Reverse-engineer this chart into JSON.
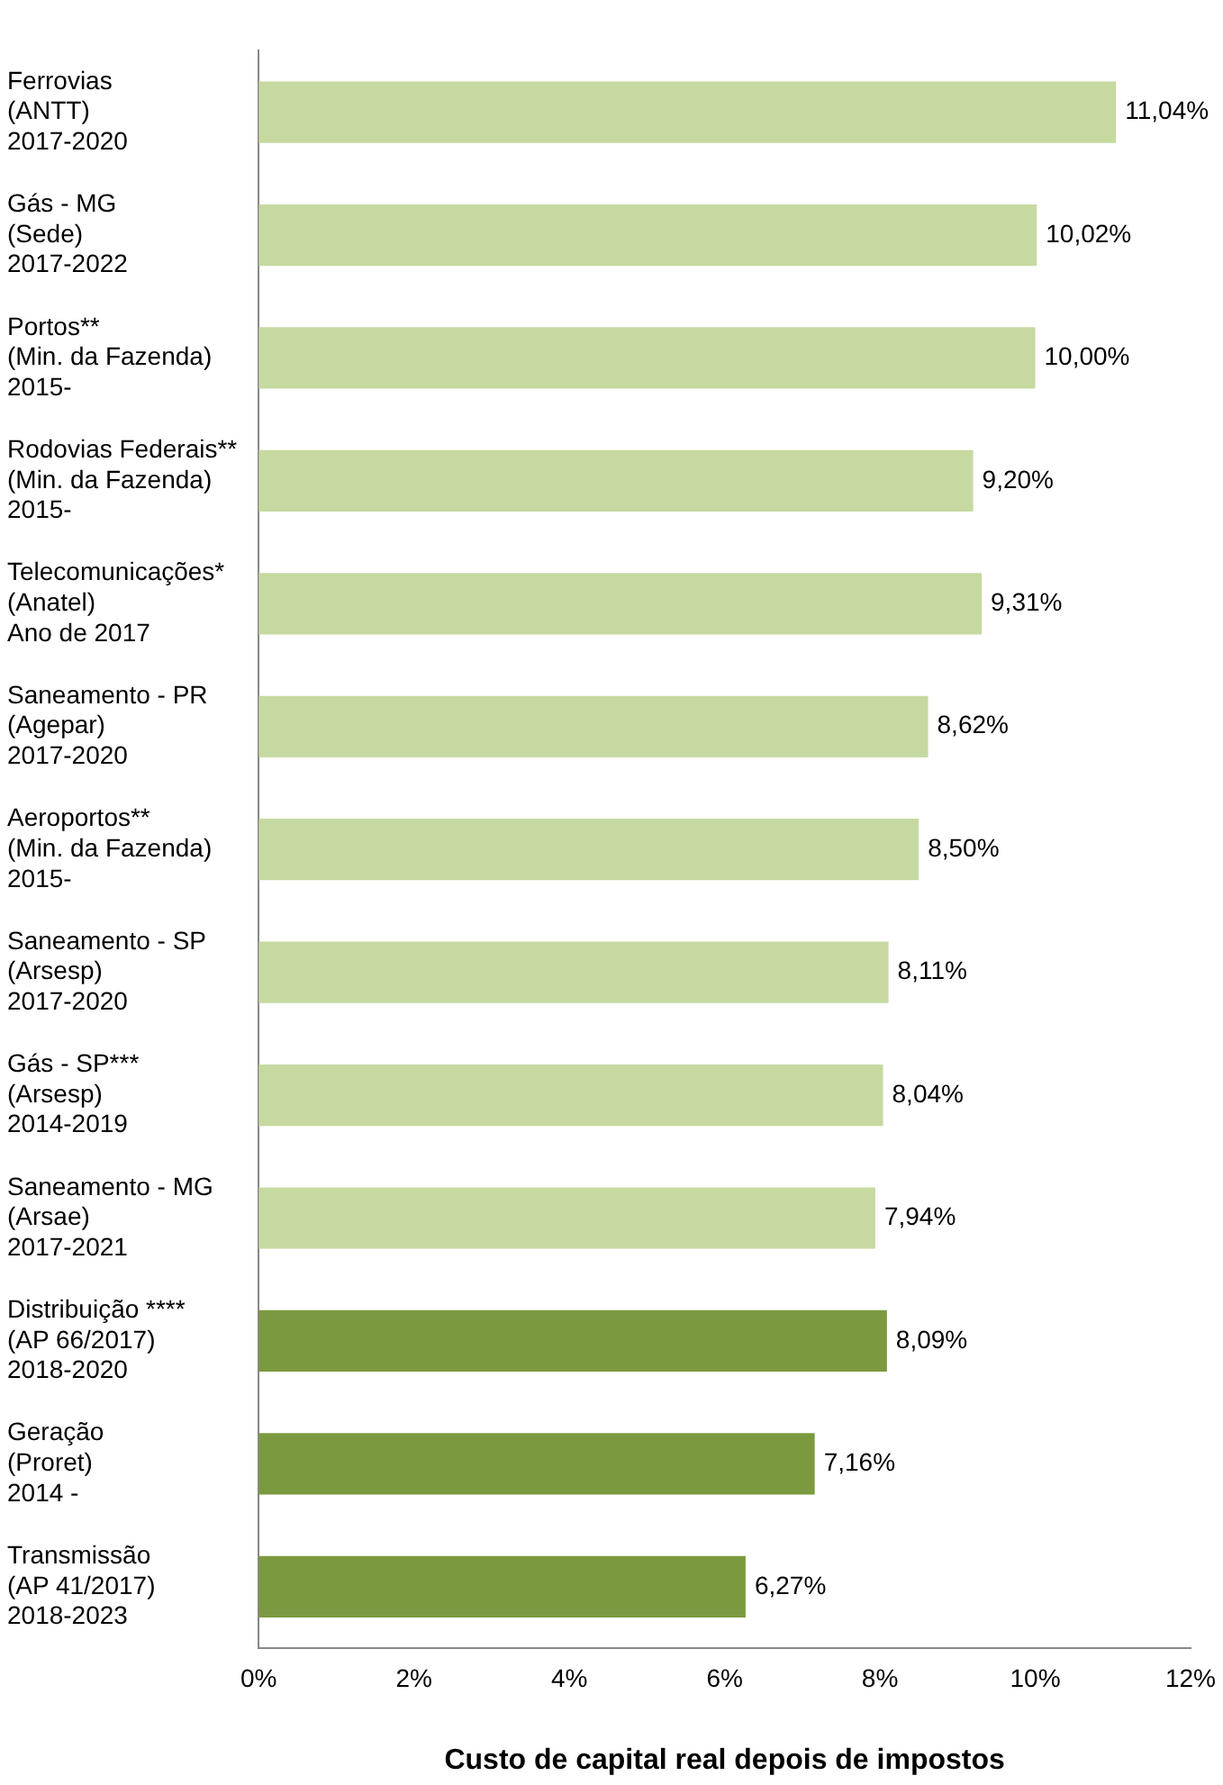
{
  "chart_data": {
    "type": "bar",
    "orientation": "horizontal",
    "xlabel": "Custo de capital real depois de impostos",
    "categories": [
      "Ferrovias\n(ANTT)\n2017-2020",
      "Gás - MG\n(Sede)\n2017-2022",
      "Portos**\n(Min. da Fazenda)\n2015-",
      "Rodovias Federais**\n(Min. da Fazenda)\n2015-",
      "Telecomunicações*\n(Anatel)\nAno de 2017",
      "Saneamento - PR\n(Agepar)\n2017-2020",
      "Aeroportos**\n(Min. da Fazenda)\n2015-",
      "Saneamento - SP\n(Arsesp)\n2017-2020",
      "Gás - SP***\n(Arsesp)\n2014-2019",
      "Saneamento - MG\n(Arsae)\n2017-2021",
      "Distribuição ****\n(AP 66/2017)\n2018-2020",
      "Geração\n(Proret)\n2014 -",
      "Transmissão\n(AP 41/2017)\n2018-2023"
    ],
    "values": [
      11.04,
      10.02,
      10.0,
      9.2,
      9.31,
      8.62,
      8.5,
      8.11,
      8.04,
      7.94,
      8.09,
      7.16,
      6.27
    ],
    "value_labels": [
      "11,04%",
      "10,02%",
      "10,00%",
      "9,20%",
      "9,31%",
      "8,62%",
      "8,50%",
      "8,11%",
      "8,04%",
      "7,94%",
      "8,09%",
      "7,16%",
      "6,27%"
    ],
    "colors": [
      "#c6d9a0",
      "#c6d9a0",
      "#c6d9a0",
      "#c6d9a0",
      "#c6d9a0",
      "#c6d9a0",
      "#c6d9a0",
      "#c6d9a0",
      "#c6d9a0",
      "#c6d9a0",
      "#7b9a3f",
      "#7b9a3f",
      "#7b9a3f"
    ],
    "xlim": [
      0,
      12
    ],
    "xticks": [
      {
        "value": 0,
        "label": "0%"
      },
      {
        "value": 2,
        "label": "2%"
      },
      {
        "value": 4,
        "label": "4%"
      },
      {
        "value": 6,
        "label": "6%"
      },
      {
        "value": 8,
        "label": "8%"
      },
      {
        "value": 10,
        "label": "10%"
      },
      {
        "value": 12,
        "label": "12%"
      }
    ],
    "grid": false,
    "legend": false
  }
}
